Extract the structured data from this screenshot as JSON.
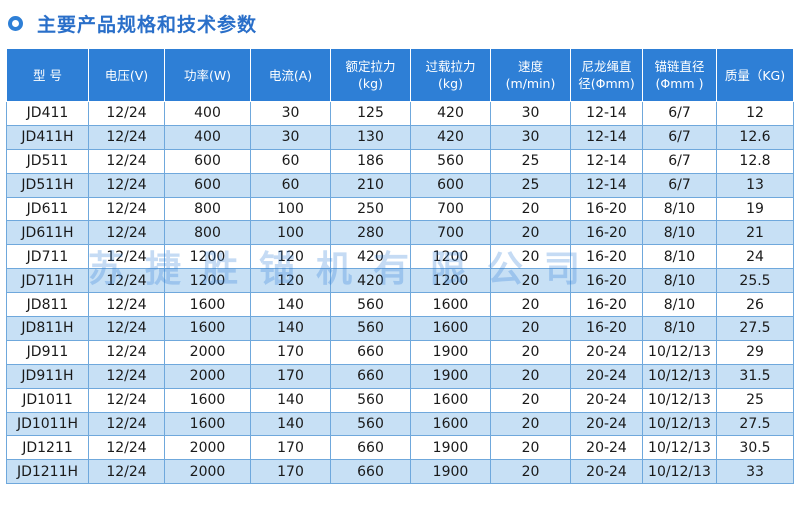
{
  "title": "主要产品规格和技术参数",
  "watermark": "苏捷胜锚机有限公司",
  "accent_color": "#2e7fd6",
  "header": [
    "型 号",
    "电压(V)",
    "功率(W)",
    "电流(A)",
    "额定拉力\n(kg)",
    "过载拉力\n(kg)",
    "速度\n(m/min)",
    "尼龙绳直\n径(Φmm)",
    "锚链直径\n(Φmm )",
    "质量（KG)"
  ],
  "rows": [
    [
      "JD411",
      "12/24",
      "400",
      "30",
      "125",
      "420",
      "30",
      "12-14",
      "6/7",
      "12"
    ],
    [
      "JD411H",
      "12/24",
      "400",
      "30",
      "130",
      "420",
      "30",
      "12-14",
      "6/7",
      "12.6"
    ],
    [
      "JD511",
      "12/24",
      "600",
      "60",
      "186",
      "560",
      "25",
      "12-14",
      "6/7",
      "12.8"
    ],
    [
      "JD511H",
      "12/24",
      "600",
      "60",
      "210",
      "600",
      "25",
      "12-14",
      "6/7",
      "13"
    ],
    [
      "JD611",
      "12/24",
      "800",
      "100",
      "250",
      "700",
      "20",
      "16-20",
      "8/10",
      "19"
    ],
    [
      "JD611H",
      "12/24",
      "800",
      "100",
      "280",
      "700",
      "20",
      "16-20",
      "8/10",
      "21"
    ],
    [
      "JD711",
      "12/24",
      "1200",
      "120",
      "420",
      "1200",
      "20",
      "16-20",
      "8/10",
      "24"
    ],
    [
      "JD711H",
      "12/24",
      "1200",
      "120",
      "420",
      "1200",
      "20",
      "16-20",
      "8/10",
      "25.5"
    ],
    [
      "JD811",
      "12/24",
      "1600",
      "140",
      "560",
      "1600",
      "20",
      "16-20",
      "8/10",
      "26"
    ],
    [
      "JD811H",
      "12/24",
      "1600",
      "140",
      "560",
      "1600",
      "20",
      "16-20",
      "8/10",
      "27.5"
    ],
    [
      "JD911",
      "12/24",
      "2000",
      "170",
      "660",
      "1900",
      "20",
      "20-24",
      "10/12/13",
      "29"
    ],
    [
      "JD911H",
      "12/24",
      "2000",
      "170",
      "660",
      "1900",
      "20",
      "20-24",
      "10/12/13",
      "31.5"
    ],
    [
      "JD1011",
      "12/24",
      "1600",
      "140",
      "560",
      "1600",
      "20",
      "20-24",
      "10/12/13",
      "25"
    ],
    [
      "JD1011H",
      "12/24",
      "1600",
      "140",
      "560",
      "1600",
      "20",
      "20-24",
      "10/12/13",
      "27.5"
    ],
    [
      "JD1211",
      "12/24",
      "2000",
      "170",
      "660",
      "1900",
      "20",
      "20-24",
      "10/12/13",
      "30.5"
    ],
    [
      "JD1211H",
      "12/24",
      "2000",
      "170",
      "660",
      "1900",
      "20",
      "20-24",
      "10/12/13",
      "33"
    ]
  ]
}
